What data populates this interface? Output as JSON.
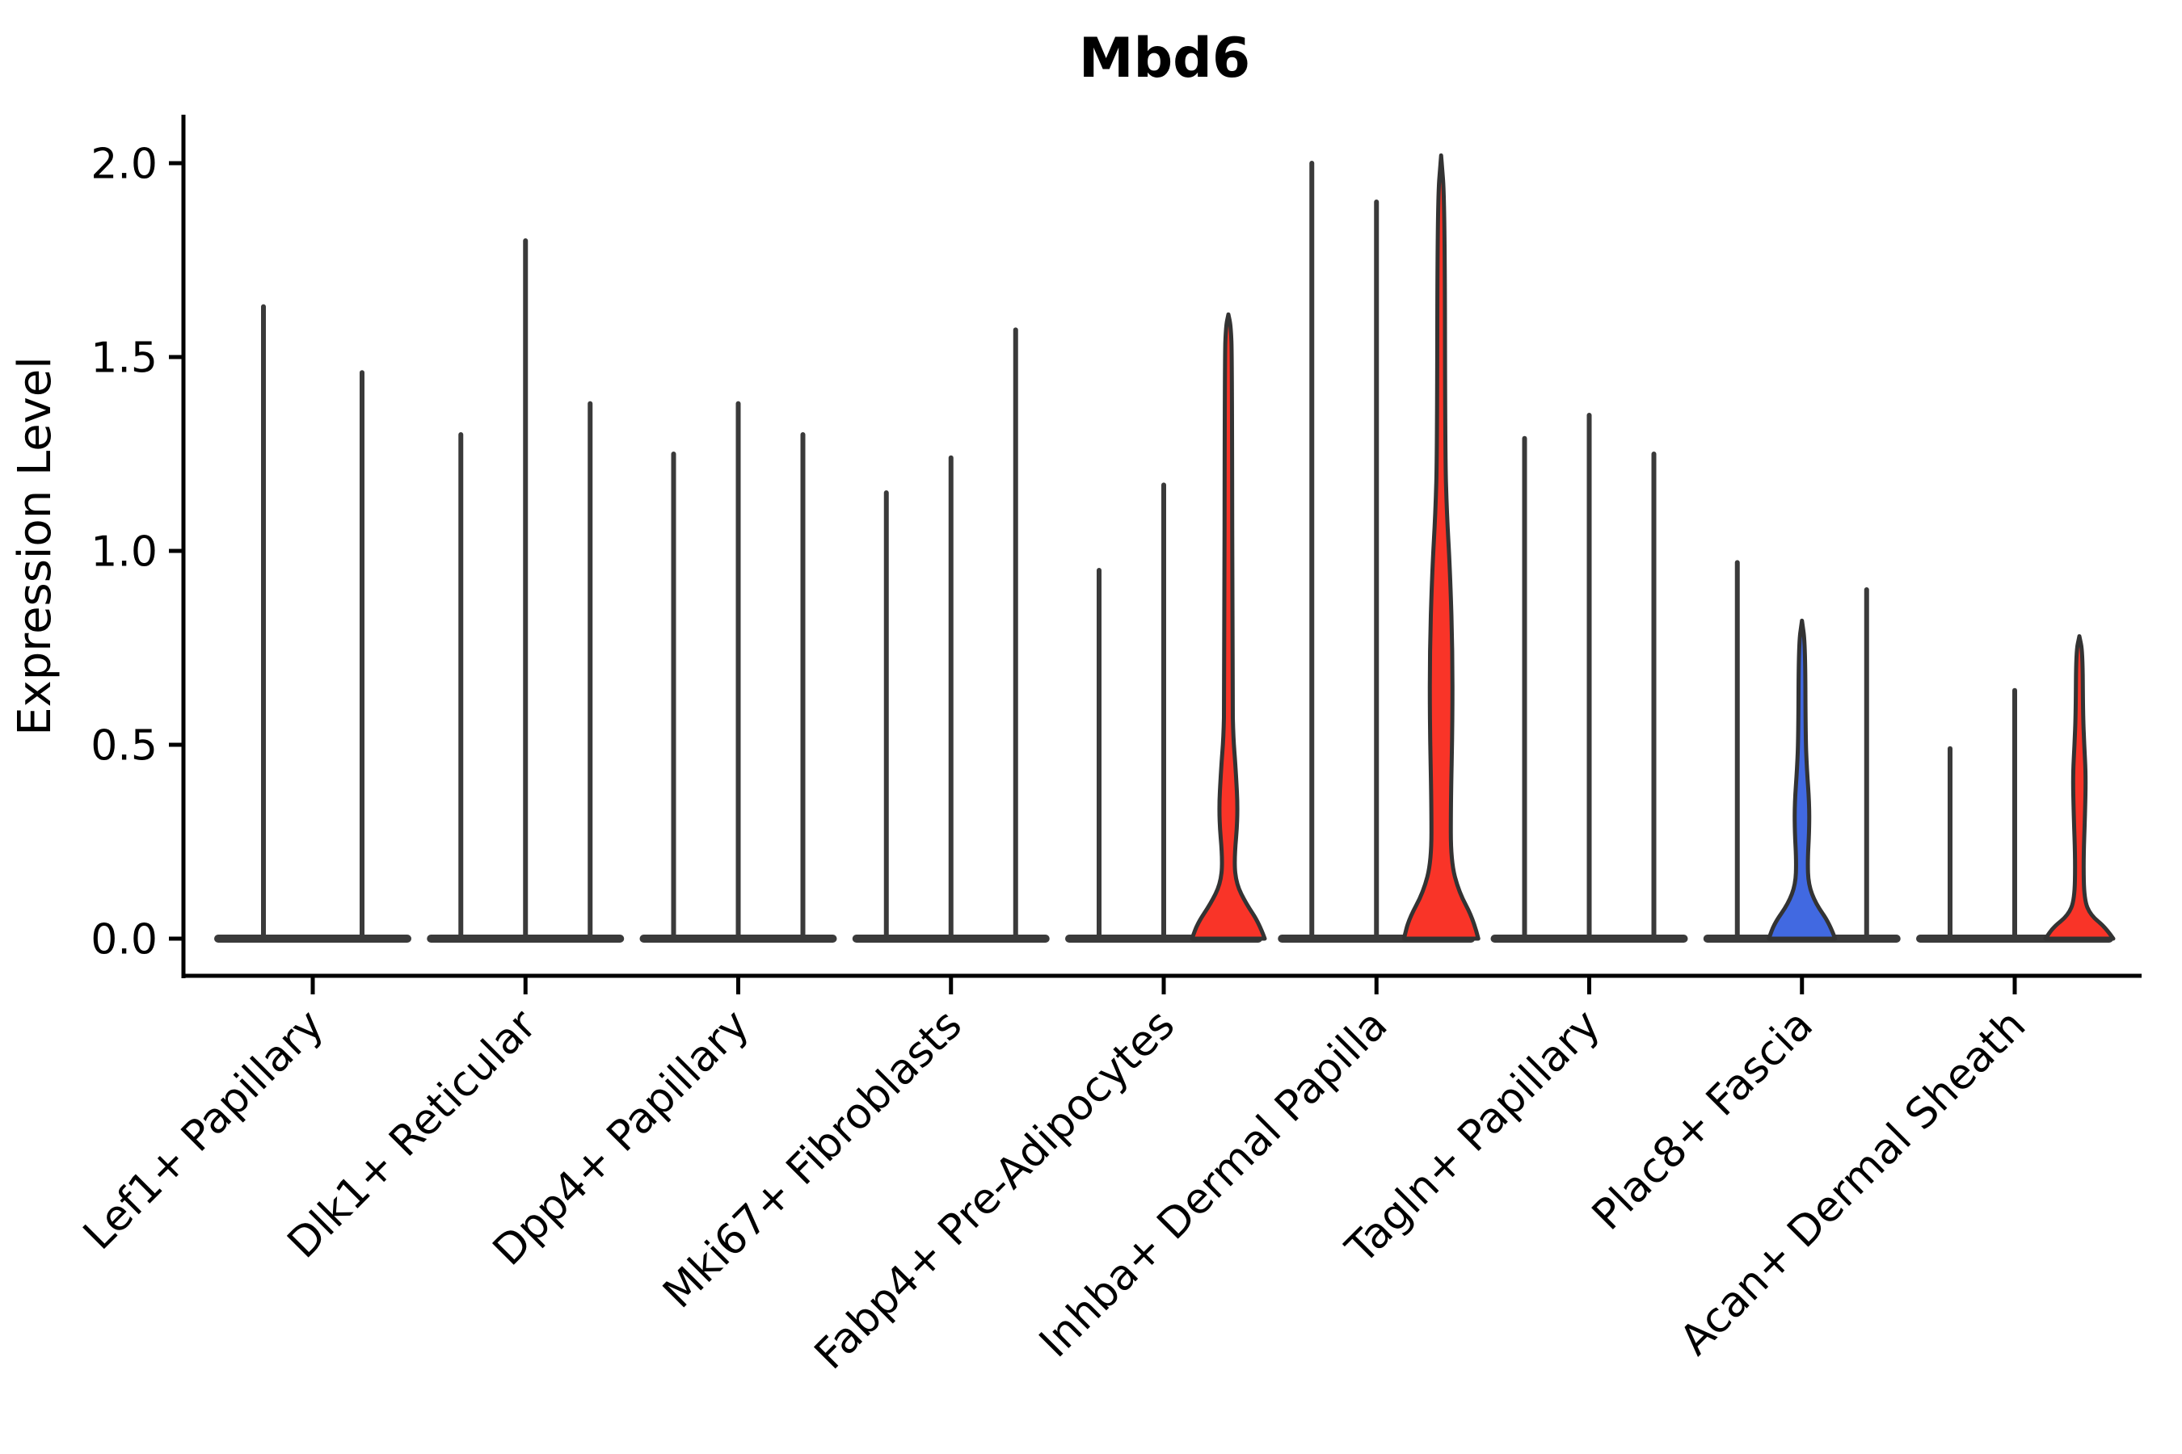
{
  "title": "Mbd6",
  "axes": {
    "ylabel": "Expression Level",
    "ytick_labels": [
      "0.0",
      "0.5",
      "1.0",
      "1.5",
      "2.0"
    ],
    "ytick_values": [
      0.0,
      0.5,
      1.0,
      1.5,
      2.0
    ]
  },
  "colors": {
    "red": "#F93428",
    "blue": "#4169E1",
    "outline": "#333333",
    "dark_violin": "#3A3A3A",
    "axis": "#000000"
  },
  "chart_data": {
    "type": "violin",
    "title": "Mbd6",
    "xlabel": "",
    "ylabel": "Expression Level",
    "ylim": [
      -0.1,
      2.12
    ],
    "yticks": [
      0.0,
      0.5,
      1.0,
      1.5,
      2.0
    ],
    "grid": false,
    "legend": "none",
    "categories": [
      "Lef1+ Papillary",
      "Dlk1+ Reticular",
      "Dpp4+ Papillary",
      "Mki67+ Fibroblasts",
      "Fabp4+ Pre-Adipocytes",
      "Inhba+ Dermal Papilla",
      "Tagln+ Papillary",
      "Plac8+ Fascia",
      "Acan+ Dermal Sheath"
    ],
    "groups": [
      {
        "category": "Lef1+ Papillary",
        "violins": [
          {
            "max": 1.63,
            "fill": "dark"
          },
          {
            "max": 1.46,
            "fill": "dark"
          }
        ]
      },
      {
        "category": "Dlk1+ Reticular",
        "violins": [
          {
            "max": 1.3,
            "fill": "dark"
          },
          {
            "max": 1.8,
            "fill": "dark"
          },
          {
            "max": 1.38,
            "fill": "dark"
          }
        ]
      },
      {
        "category": "Dpp4+ Papillary",
        "violins": [
          {
            "max": 1.25,
            "fill": "dark"
          },
          {
            "max": 1.38,
            "fill": "dark"
          },
          {
            "max": 1.3,
            "fill": "dark"
          }
        ]
      },
      {
        "category": "Mki67+ Fibroblasts",
        "violins": [
          {
            "max": 1.15,
            "fill": "dark"
          },
          {
            "max": 1.24,
            "fill": "dark"
          },
          {
            "max": 1.57,
            "fill": "dark"
          }
        ]
      },
      {
        "category": "Fabp4+ Pre-Adipocytes",
        "violins": [
          {
            "max": 0.95,
            "fill": "dark"
          },
          {
            "max": 1.17,
            "fill": "dark"
          },
          {
            "max": 1.61,
            "fill": "red",
            "profile": [
              [
                0,
                45
              ],
              [
                0.04,
                38
              ],
              [
                0.09,
                22
              ],
              [
                0.14,
                10
              ],
              [
                0.2,
                7
              ],
              [
                0.32,
                12
              ],
              [
                0.44,
                9
              ],
              [
                0.52,
                6
              ],
              [
                0.62,
                5
              ],
              [
                1.5,
                4.5
              ],
              [
                1.58,
                3
              ],
              [
                1.61,
                0
              ]
            ]
          }
        ]
      },
      {
        "category": "Inhba+ Dermal Papilla",
        "violins": [
          {
            "max": 2.0,
            "fill": "dark"
          },
          {
            "max": 1.9,
            "fill": "dark"
          },
          {
            "max": 2.02,
            "fill": "red",
            "profile": [
              [
                0,
                46
              ],
              [
                0.05,
                40
              ],
              [
                0.12,
                22
              ],
              [
                0.2,
                12
              ],
              [
                0.35,
                12
              ],
              [
                0.55,
                14
              ],
              [
                0.75,
                14
              ],
              [
                0.95,
                11
              ],
              [
                1.1,
                7
              ],
              [
                1.25,
                5
              ],
              [
                1.9,
                4.5
              ],
              [
                2.02,
                0
              ]
            ]
          }
        ]
      },
      {
        "category": "Tagln+ Papillary",
        "violins": [
          {
            "max": 1.29,
            "fill": "dark"
          },
          {
            "max": 1.35,
            "fill": "dark"
          },
          {
            "max": 1.25,
            "fill": "dark"
          }
        ]
      },
      {
        "category": "Plac8+ Fascia",
        "violins": [
          {
            "max": 0.97,
            "fill": "dark"
          },
          {
            "max": 0.82,
            "fill": "blue",
            "profile": [
              [
                0,
                41
              ],
              [
                0.04,
                34
              ],
              [
                0.09,
                17
              ],
              [
                0.14,
                8
              ],
              [
                0.2,
                7
              ],
              [
                0.28,
                9
              ],
              [
                0.35,
                9
              ],
              [
                0.44,
                6
              ],
              [
                0.52,
                4.5
              ],
              [
                0.76,
                4
              ],
              [
                0.82,
                0
              ]
            ]
          },
          {
            "max": 0.9,
            "fill": "dark"
          }
        ]
      },
      {
        "category": "Acan+ Dermal Sheath",
        "violins": [
          {
            "max": 0.49,
            "fill": "dark"
          },
          {
            "max": 0.64,
            "fill": "dark"
          },
          {
            "max": 0.78,
            "fill": "red",
            "profile": [
              [
                0,
                42
              ],
              [
                0.03,
                32
              ],
              [
                0.06,
                14
              ],
              [
                0.1,
                6
              ],
              [
                0.2,
                5
              ],
              [
                0.32,
                7
              ],
              [
                0.42,
                8
              ],
              [
                0.5,
                6
              ],
              [
                0.58,
                4.5
              ],
              [
                0.74,
                4
              ],
              [
                0.78,
                0
              ]
            ]
          }
        ]
      }
    ]
  }
}
